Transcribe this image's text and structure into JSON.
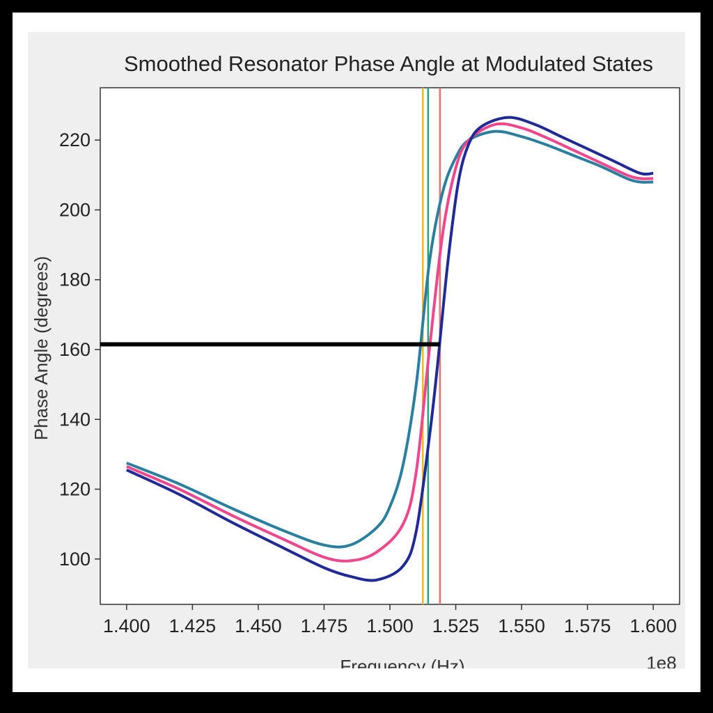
{
  "chart_data": {
    "type": "line",
    "title": "Smoothed Resonator Phase Angle at Modulated States",
    "xlabel": "Frequency (Hz)",
    "ylabel": "Phase Angle (degrees)",
    "x_offset_label": "1e8",
    "xlim": [
      1.39,
      1.61
    ],
    "ylim": [
      87,
      235
    ],
    "x_ticks": [
      1.4,
      1.425,
      1.45,
      1.475,
      1.5,
      1.525,
      1.55,
      1.575,
      1.6
    ],
    "x_tick_labels": [
      "1.400",
      "1.425",
      "1.450",
      "1.475",
      "1.500",
      "1.525",
      "1.550",
      "1.575",
      "1.600"
    ],
    "y_ticks": [
      100,
      120,
      140,
      160,
      180,
      200,
      220
    ],
    "y_tick_labels": [
      "100",
      "120",
      "140",
      "160",
      "180",
      "200",
      "220"
    ],
    "grid": false,
    "series": [
      {
        "color": "#2b7f9e",
        "points": [
          [
            1.4,
            127.5
          ],
          [
            1.42,
            121.5
          ],
          [
            1.44,
            114.5
          ],
          [
            1.46,
            108.0
          ],
          [
            1.475,
            104.0
          ],
          [
            1.485,
            104.0
          ],
          [
            1.495,
            109.0
          ],
          [
            1.5,
            115.0
          ],
          [
            1.505,
            127.0
          ],
          [
            1.51,
            150.0
          ],
          [
            1.515,
            185.0
          ],
          [
            1.52,
            205.0
          ],
          [
            1.525,
            215.0
          ],
          [
            1.53,
            220.0
          ],
          [
            1.54,
            222.5
          ],
          [
            1.55,
            221.0
          ],
          [
            1.56,
            218.5
          ],
          [
            1.57,
            215.5
          ],
          [
            1.58,
            212.5
          ],
          [
            1.59,
            209.0
          ],
          [
            1.595,
            208.0
          ],
          [
            1.6,
            208.0
          ]
        ]
      },
      {
        "color": "#f0468c",
        "points": [
          [
            1.4,
            126.5
          ],
          [
            1.42,
            120.0
          ],
          [
            1.44,
            112.5
          ],
          [
            1.46,
            105.5
          ],
          [
            1.475,
            100.5
          ],
          [
            1.485,
            99.5
          ],
          [
            1.495,
            102.0
          ],
          [
            1.505,
            110.0
          ],
          [
            1.51,
            125.0
          ],
          [
            1.515,
            160.0
          ],
          [
            1.52,
            193.0
          ],
          [
            1.525,
            212.0
          ],
          [
            1.53,
            220.0
          ],
          [
            1.54,
            224.5
          ],
          [
            1.55,
            223.5
          ],
          [
            1.56,
            220.5
          ],
          [
            1.57,
            217.0
          ],
          [
            1.58,
            213.5
          ],
          [
            1.59,
            210.0
          ],
          [
            1.595,
            209.0
          ],
          [
            1.6,
            209.0
          ]
        ]
      },
      {
        "color": "#202a96",
        "points": [
          [
            1.4,
            125.5
          ],
          [
            1.42,
            118.5
          ],
          [
            1.44,
            110.5
          ],
          [
            1.46,
            103.0
          ],
          [
            1.475,
            97.5
          ],
          [
            1.485,
            95.0
          ],
          [
            1.495,
            94.0
          ],
          [
            1.505,
            98.0
          ],
          [
            1.51,
            108.0
          ],
          [
            1.515,
            135.0
          ],
          [
            1.518,
            155.0
          ],
          [
            1.522,
            185.0
          ],
          [
            1.526,
            208.0
          ],
          [
            1.53,
            219.0
          ],
          [
            1.535,
            224.0
          ],
          [
            1.545,
            226.5
          ],
          [
            1.555,
            224.5
          ],
          [
            1.565,
            221.0
          ],
          [
            1.575,
            217.5
          ],
          [
            1.585,
            214.0
          ],
          [
            1.595,
            210.5
          ],
          [
            1.6,
            210.5
          ]
        ]
      }
    ],
    "vertical_lines": [
      {
        "x": 1.5125,
        "color": "#f0b429"
      },
      {
        "x": 1.5145,
        "color": "#22a878"
      },
      {
        "x": 1.519,
        "color": "#f26b6b"
      }
    ],
    "horizontal_segment": {
      "x_start": 1.39,
      "x_end": 1.519,
      "y": 161.5,
      "color": "#000000"
    }
  }
}
